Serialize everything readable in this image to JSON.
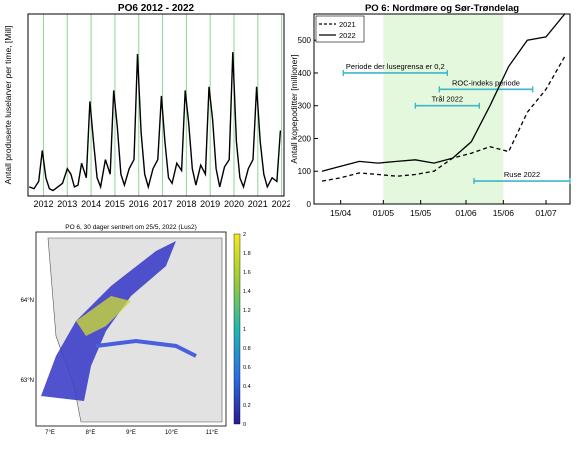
{
  "chart_data": [
    {
      "type": "line",
      "title": "PO6 2012 - 2022",
      "xlabel": "",
      "ylabel": "Antall produserte luselarver per time, [Mill]",
      "x_ticks": [
        "2012",
        "2013",
        "2014",
        "2015",
        "2016",
        "2017",
        "2018",
        "2019",
        "2020",
        "2021",
        "2022"
      ],
      "xlim": [
        2011.85,
        2022.6
      ],
      "ylim": [
        0,
        100
      ],
      "y_ticks": [],
      "grid": "vertical lines at years",
      "series": [
        {
          "name": "",
          "color": "#000000",
          "x": [
            2011.9,
            2012.1,
            2012.3,
            2012.45,
            2012.6,
            2012.75,
            2012.9,
            2013.1,
            2013.3,
            2013.5,
            2013.65,
            2013.8,
            2013.95,
            2014.1,
            2014.3,
            2014.45,
            2014.6,
            2014.75,
            2014.9,
            2015.1,
            2015.3,
            2015.45,
            2015.6,
            2015.75,
            2015.9,
            2016.1,
            2016.3,
            2016.45,
            2016.6,
            2016.75,
            2016.9,
            2017.1,
            2017.3,
            2017.45,
            2017.6,
            2017.75,
            2017.9,
            2018.1,
            2018.3,
            2018.45,
            2018.6,
            2018.75,
            2018.9,
            2019.1,
            2019.3,
            2019.45,
            2019.6,
            2019.75,
            2019.9,
            2020.1,
            2020.3,
            2020.45,
            2020.6,
            2020.75,
            2020.9,
            2021.1,
            2021.3,
            2021.45,
            2021.6,
            2021.75,
            2021.9,
            2022.1,
            2022.3,
            2022.45
          ],
          "y": [
            5,
            4,
            8,
            25,
            10,
            4,
            3,
            5,
            7,
            15,
            12,
            5,
            6,
            18,
            10,
            52,
            30,
            10,
            5,
            20,
            12,
            58,
            38,
            12,
            6,
            15,
            20,
            78,
            35,
            12,
            5,
            15,
            20,
            55,
            30,
            10,
            7,
            18,
            14,
            58,
            40,
            15,
            6,
            17,
            12,
            60,
            42,
            15,
            5,
            16,
            20,
            79,
            30,
            10,
            5,
            15,
            20,
            60,
            30,
            12,
            5,
            10,
            8,
            36
          ]
        }
      ]
    },
    {
      "type": "line",
      "title": "PO 6: Nordmøre og Sør-Trøndelag",
      "xlabel": "",
      "ylabel": "Antall kopepoditter [millioner]",
      "x_ticks": [
        "15/04",
        "01/05",
        "15/05",
        "01/06",
        "15/06",
        "01/07"
      ],
      "y_ticks": [
        "0",
        "100",
        "200",
        "300",
        "400",
        "500"
      ],
      "ylim": [
        0,
        580
      ],
      "legend": "top-left",
      "green_period": [
        "01/05",
        "15/06"
      ],
      "series": [
        {
          "name": "2021",
          "style": "dashed",
          "color": "#000000",
          "x": [
            "08/04",
            "15/04",
            "22/04",
            "29/04",
            "06/05",
            "13/05",
            "20/05",
            "27/05",
            "03/06",
            "10/06",
            "17/06",
            "24/06",
            "01/07",
            "08/07"
          ],
          "y": [
            70,
            80,
            95,
            90,
            85,
            90,
            100,
            140,
            155,
            175,
            160,
            280,
            350,
            450
          ]
        },
        {
          "name": "2022",
          "style": "solid",
          "color": "#000000",
          "x": [
            "08/04",
            "15/04",
            "22/04",
            "29/04",
            "06/05",
            "13/05",
            "20/05",
            "27/05",
            "03/06",
            "10/06",
            "17/06",
            "24/06",
            "01/07",
            "08/07"
          ],
          "y": [
            100,
            115,
            130,
            125,
            130,
            135,
            125,
            140,
            190,
            300,
            420,
            500,
            510,
            580
          ]
        }
      ],
      "annotations": [
        {
          "label": "Periode der lusegrensa er 0,2",
          "start": "16/04",
          "end": "25/05",
          "y": 400
        },
        {
          "label": "ROC-indeks periode",
          "start": "22/05",
          "end": "26/06",
          "y": 350
        },
        {
          "label": "Trål 2022",
          "start": "13/05",
          "end": "06/06",
          "y": 300
        },
        {
          "label": "Ruse 2022",
          "start": "04/06",
          "end": "10/07",
          "y": 70
        }
      ]
    },
    {
      "type": "heatmap",
      "title": "PO 6, 30 dager sentrert om 25/5, 2022 (Lus2)",
      "x_ticks": [
        "7°E",
        "8°E",
        "9°E",
        "10°E",
        "11°E"
      ],
      "y_ticks": [
        "64°N",
        "63°N"
      ],
      "colorbar": {
        "ticks": [
          "0",
          "0.2",
          "0.4",
          "0.6",
          "0.8",
          "1",
          "1.2",
          "1.4",
          "1.6",
          "1.8",
          "2"
        ],
        "range": [
          0,
          2
        ]
      }
    }
  ]
}
